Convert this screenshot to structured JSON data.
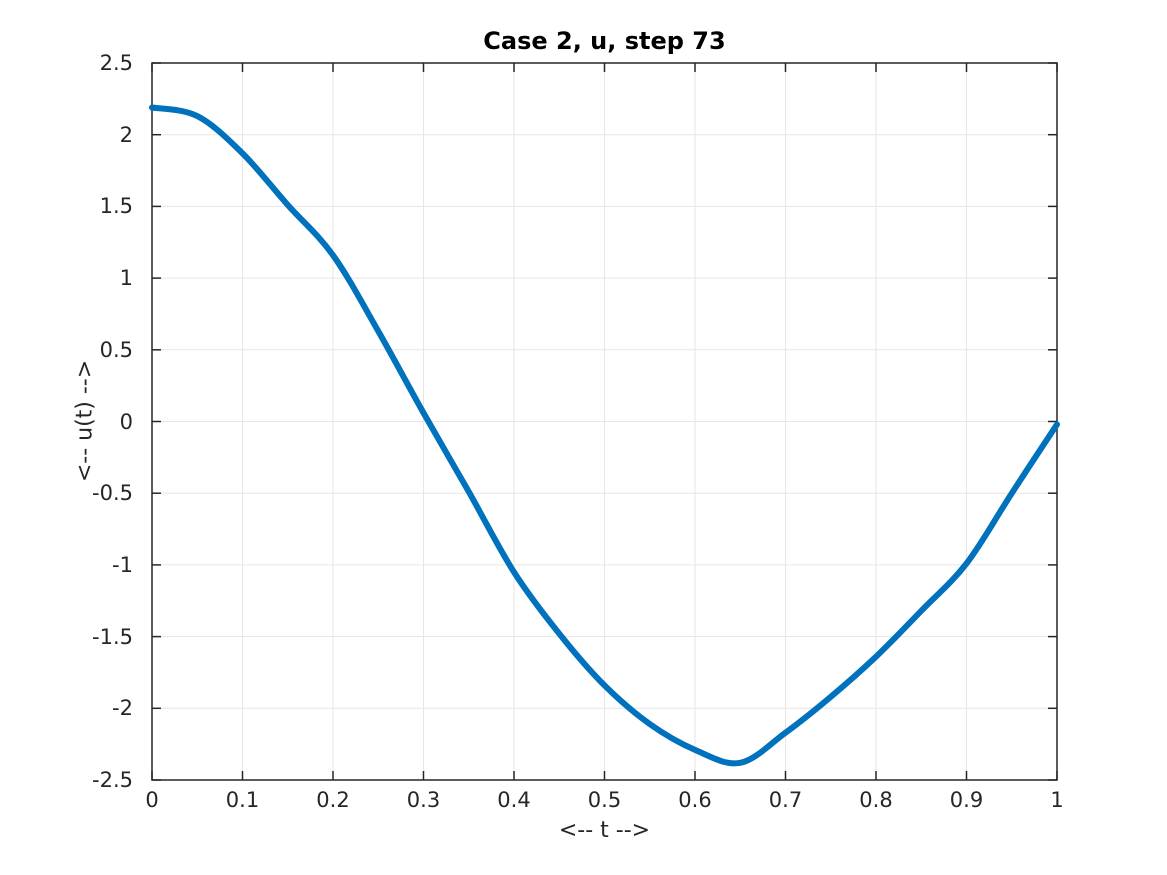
{
  "figure": {
    "title": "Case 2, u, step 73",
    "xlabel": "<-- t -->",
    "ylabel": "<-- u(t) -->"
  },
  "chart_data": {
    "type": "line",
    "title": "Case 2, u, step 73",
    "xlabel": "<-- t -->",
    "ylabel": "<-- u(t) -->",
    "xlim": [
      0,
      1
    ],
    "ylim": [
      -2.5,
      2.5
    ],
    "grid": true,
    "legend": "none",
    "xticks": [
      0,
      0.1,
      0.2,
      0.3,
      0.4,
      0.5,
      0.6,
      0.7,
      0.8,
      0.9,
      1
    ],
    "xtick_labels": [
      "0",
      "0.1",
      "0.2",
      "0.3",
      "0.4",
      "0.5",
      "0.6",
      "0.7",
      "0.8",
      "0.9",
      "1"
    ],
    "yticks": [
      -2.5,
      -2,
      -1.5,
      -1,
      -0.5,
      0,
      0.5,
      1,
      1.5,
      2,
      2.5
    ],
    "ytick_labels": [
      "-2.5",
      "-2",
      "-1.5",
      "-1",
      "-0.5",
      "0",
      "0.5",
      "1",
      "1.5",
      "2",
      "2.5"
    ],
    "series": [
      {
        "name": "u",
        "color": "#0072BD",
        "line_width": 6,
        "x": [
          0,
          0.05,
          0.1,
          0.15,
          0.2,
          0.25,
          0.3,
          0.35,
          0.4,
          0.45,
          0.5,
          0.55,
          0.6,
          0.65,
          0.7,
          0.75,
          0.8,
          0.85,
          0.9,
          0.95,
          1.0
        ],
        "y": [
          2.19,
          2.13,
          1.87,
          1.51,
          1.16,
          0.63,
          0.06,
          -0.49,
          -1.05,
          -1.48,
          -1.84,
          -2.11,
          -2.29,
          -2.38,
          -2.17,
          -1.92,
          -1.64,
          -1.32,
          -0.99,
          -0.5,
          -0.02
        ]
      }
    ]
  },
  "colors": {
    "background": "#ffffff",
    "axis": "#262626",
    "grid": "#e6e6e6",
    "title": "#000000",
    "curve": "#0072BD"
  }
}
